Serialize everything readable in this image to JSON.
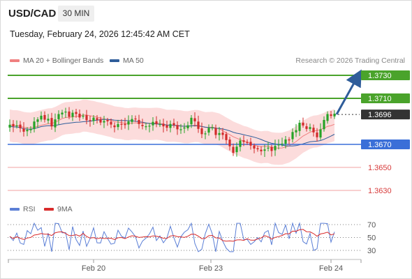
{
  "header": {
    "symbol": "USD/CAD",
    "timeframe": "30 MIN",
    "datetime": "Tuesday, February 24, 2026 12:45:42 AM CET"
  },
  "legend": {
    "ma20_label": "MA 20 + Bollinger Bands",
    "ma20_color": "#f08080",
    "ma50_label": "MA 50",
    "ma50_color": "#2f5d9a",
    "credit": "Research © 2026 Trading Central"
  },
  "levels": [
    {
      "label": "1.3730",
      "kind": "resistance",
      "color": "#4aa32b"
    },
    {
      "label": "1.3710",
      "kind": "resistance",
      "color": "#4aa32b"
    },
    {
      "label": "1.3696",
      "kind": "current",
      "color": "#333333"
    },
    {
      "label": "1.3670",
      "kind": "pivot",
      "color": "#3a6fd8"
    },
    {
      "label": "1.3650",
      "kind": "support",
      "color": "#d73a3a"
    },
    {
      "label": "1.3630",
      "kind": "support",
      "color": "#d73a3a"
    }
  ],
  "rsi_panel": {
    "rsi_label": "RSI",
    "rsi_color": "#5b7fd6",
    "ma_label": "9MA",
    "ma_color": "#d92b2b",
    "ticks": [
      "70",
      "50",
      "30"
    ]
  },
  "x_axis": {
    "labels": [
      "Feb 20",
      "Feb 23",
      "Feb 24"
    ]
  },
  "colors": {
    "bull": "#27a327",
    "bear": "#d22b2b",
    "band_fill": "#fbd6d6",
    "arrow": "#2f5d9a"
  }
}
